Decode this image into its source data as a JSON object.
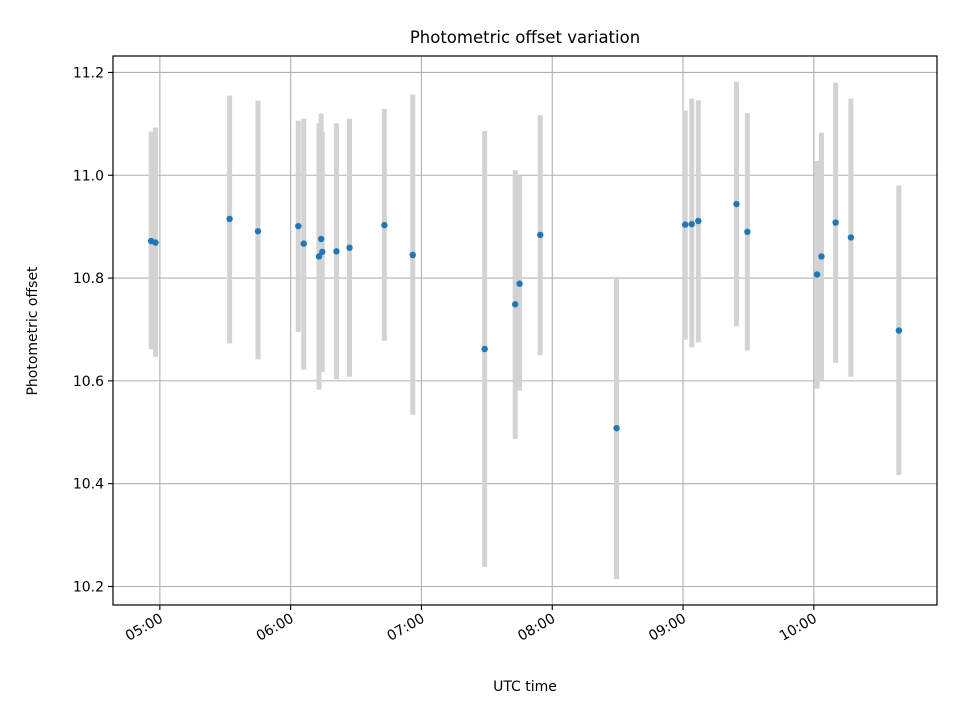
{
  "chart_data": {
    "type": "scatter",
    "title": "Photometric offset variation",
    "xlabel": "UTC time",
    "ylabel": "Photometric offset",
    "x_format": "HH:MM",
    "x_ticks": [
      "05:00",
      "06:00",
      "07:00",
      "08:00",
      "09:00",
      "10:00"
    ],
    "x_ticks_minutes": [
      300,
      360,
      420,
      480,
      540,
      600
    ],
    "xlim_minutes": [
      278.5,
      656.5
    ],
    "ylim": [
      10.164,
      11.232
    ],
    "y_ticks": [
      10.2,
      10.4,
      10.6,
      10.8,
      11.0,
      11.2
    ],
    "y_tick_labels": [
      "10.2",
      "10.4",
      "10.6",
      "10.8",
      "11.0",
      "11.2"
    ],
    "grid": true,
    "marker_color": "#1f77b4",
    "errorbar_color": "#d3d3d3",
    "points": [
      {
        "t": 296.0,
        "y": 10.872,
        "lo": 10.661,
        "hi": 11.085
      },
      {
        "t": 298.0,
        "y": 10.869,
        "lo": 10.647,
        "hi": 11.093
      },
      {
        "t": 332.0,
        "y": 10.915,
        "lo": 10.673,
        "hi": 11.155
      },
      {
        "t": 345.0,
        "y": 10.891,
        "lo": 10.642,
        "hi": 11.145
      },
      {
        "t": 363.5,
        "y": 10.901,
        "lo": 10.695,
        "hi": 11.106
      },
      {
        "t": 366.0,
        "y": 10.867,
        "lo": 10.622,
        "hi": 11.11
      },
      {
        "t": 373.0,
        "y": 10.842,
        "lo": 10.583,
        "hi": 11.101
      },
      {
        "t": 374.0,
        "y": 10.876,
        "lo": 10.63,
        "hi": 11.12
      },
      {
        "t": 374.5,
        "y": 10.851,
        "lo": 10.617,
        "hi": 11.085
      },
      {
        "t": 381.0,
        "y": 10.852,
        "lo": 10.603,
        "hi": 11.101
      },
      {
        "t": 387.0,
        "y": 10.859,
        "lo": 10.608,
        "hi": 11.11
      },
      {
        "t": 403.0,
        "y": 10.903,
        "lo": 10.678,
        "hi": 11.129
      },
      {
        "t": 416.0,
        "y": 10.845,
        "lo": 10.534,
        "hi": 11.157
      },
      {
        "t": 449.0,
        "y": 10.662,
        "lo": 10.238,
        "hi": 11.086
      },
      {
        "t": 463.0,
        "y": 10.749,
        "lo": 10.487,
        "hi": 11.01
      },
      {
        "t": 465.0,
        "y": 10.789,
        "lo": 10.581,
        "hi": 11.0
      },
      {
        "t": 474.5,
        "y": 10.884,
        "lo": 10.65,
        "hi": 11.117
      },
      {
        "t": 509.5,
        "y": 10.508,
        "lo": 10.214,
        "hi": 10.802
      },
      {
        "t": 541.0,
        "y": 10.904,
        "lo": 10.68,
        "hi": 11.126
      },
      {
        "t": 544.0,
        "y": 10.905,
        "lo": 10.665,
        "hi": 11.149
      },
      {
        "t": 547.0,
        "y": 10.911,
        "lo": 10.675,
        "hi": 11.146
      },
      {
        "t": 564.5,
        "y": 10.944,
        "lo": 10.706,
        "hi": 11.182
      },
      {
        "t": 569.5,
        "y": 10.89,
        "lo": 10.659,
        "hi": 11.121
      },
      {
        "t": 601.5,
        "y": 10.807,
        "lo": 10.585,
        "hi": 11.028
      },
      {
        "t": 603.5,
        "y": 10.842,
        "lo": 10.6,
        "hi": 11.083
      },
      {
        "t": 610.0,
        "y": 10.908,
        "lo": 10.635,
        "hi": 11.18
      },
      {
        "t": 617.0,
        "y": 10.879,
        "lo": 10.608,
        "hi": 11.149
      },
      {
        "t": 639.0,
        "y": 10.698,
        "lo": 10.417,
        "hi": 10.98
      }
    ]
  }
}
